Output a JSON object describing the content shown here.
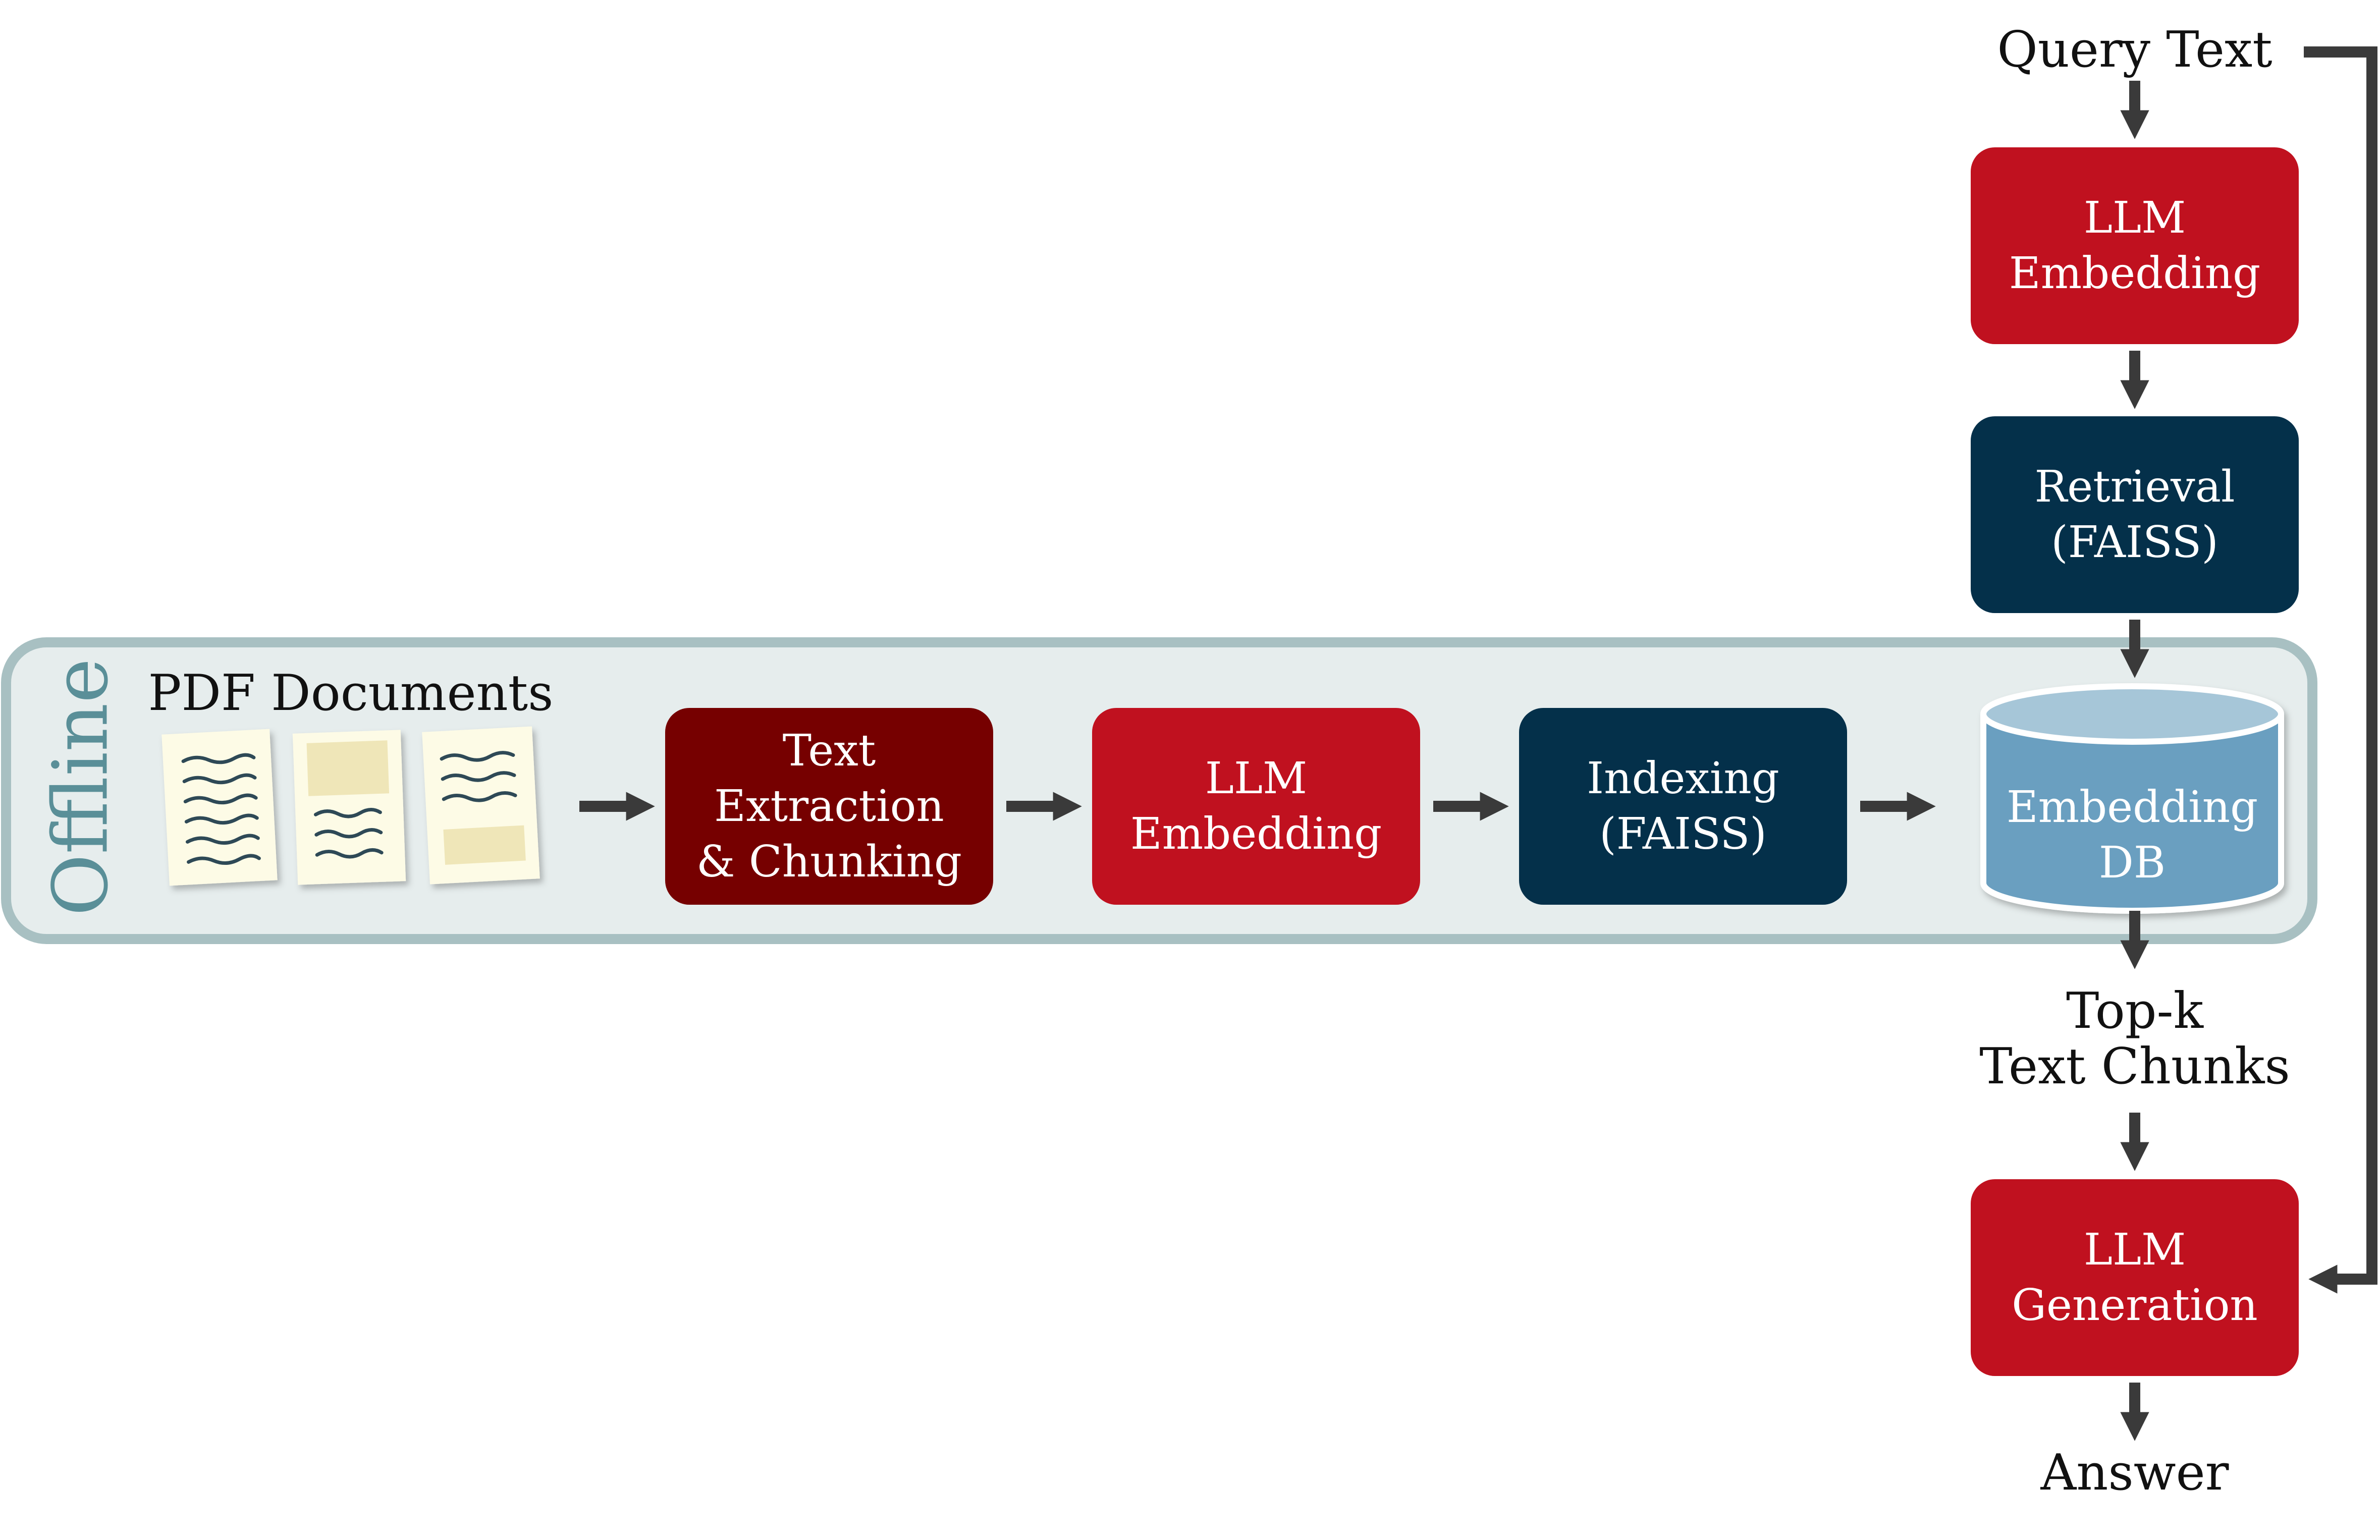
{
  "offline_label": "Offline",
  "pdf_label": "PDF Documents",
  "offline_steps": {
    "extraction": "Text\nExtraction\n& Chunking",
    "embedding": "LLM\nEmbedding",
    "indexing": "Indexing\n(FAISS)"
  },
  "database": "Embedding\nDB",
  "online_steps": {
    "query": "Query Text",
    "query_embedding": "LLM\nEmbedding",
    "retrieval": "Retrieval\n(FAISS)",
    "topk": "Top-k\nText Chunks",
    "generation": "LLM\nGeneration",
    "answer": "Answer"
  },
  "colors": {
    "red": "#c0111f",
    "dark_red": "#760000",
    "navy": "#04304a",
    "db_fill": "#6a9fc0",
    "db_top": "#a6c6d8",
    "offline_panel": "#e6eded",
    "offline_border": "#a8c0c2",
    "offline_text": "#5a8f98",
    "arrow": "#3a3a3a",
    "paper": "#fdfbe6",
    "paper_block": "#efe6b8",
    "paper_lines": "#2f4a56"
  }
}
